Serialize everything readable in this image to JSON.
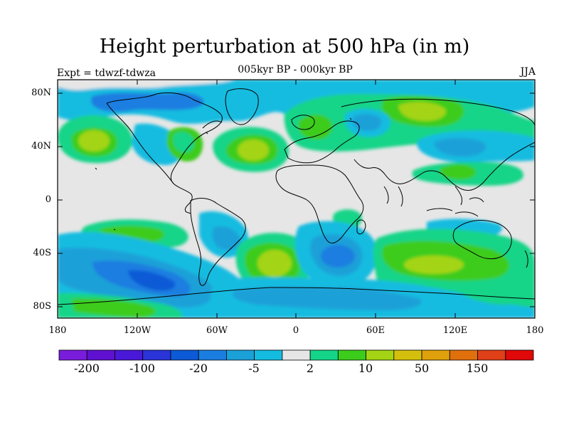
{
  "title": "Height perturbation at 500 hPa (in m)",
  "subtitle": "005kyr BP - 000kyr BP",
  "expt_label": "Expt = tdwzf-tdwza",
  "season": "JJA",
  "lat_ticks": [
    "80N",
    "40N",
    "0",
    "40S",
    "80S"
  ],
  "lon_ticks": [
    "180",
    "120W",
    "60W",
    "0",
    "60E",
    "120E",
    "180"
  ],
  "colorbar": {
    "colors": [
      "#7a1cdc",
      "#6010d0",
      "#4a18d8",
      "#2a34d8",
      "#0c5ad6",
      "#1a7ee0",
      "#1ca0d8",
      "#14bce0",
      "#e6e6e6",
      "#14d488",
      "#3ccc1c",
      "#a4d414",
      "#d4c00c",
      "#e0a00c",
      "#e0700c",
      "#e04018",
      "#e00808"
    ],
    "labels": [
      "-200",
      "-100",
      "-20",
      "-5",
      "2",
      "10",
      "50",
      "150"
    ]
  }
}
